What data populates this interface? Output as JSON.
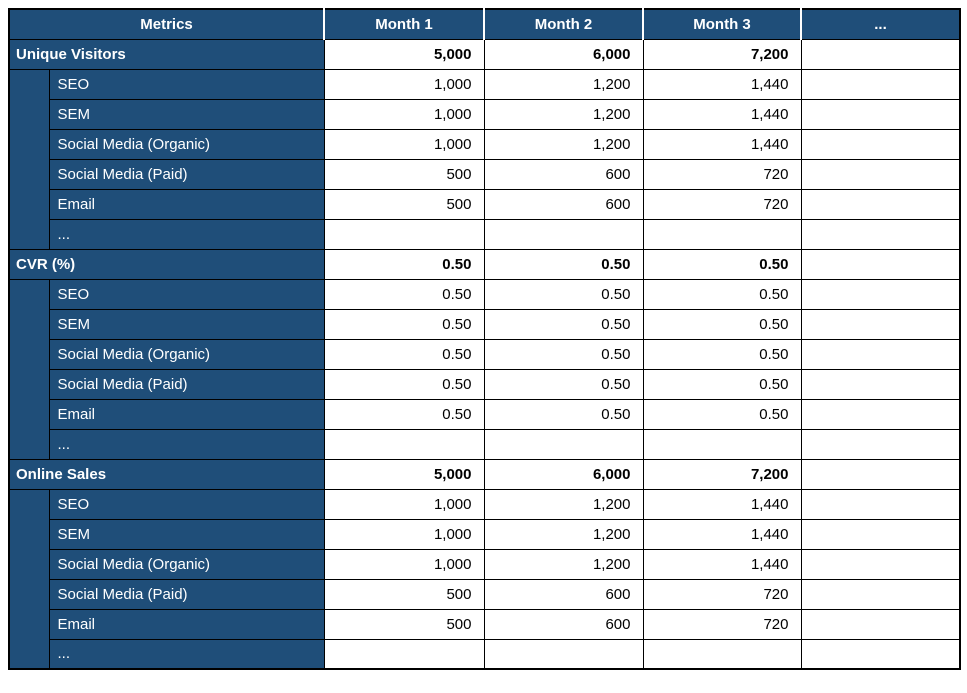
{
  "table": {
    "header": {
      "metrics_label": "Metrics",
      "columns": [
        "Month 1",
        "Month 2",
        "Month 3",
        "..."
      ]
    },
    "sections": [
      {
        "label": "Unique Visitors",
        "values": [
          "5,000",
          "6,000",
          "7,200"
        ],
        "rows": [
          {
            "label": "SEO",
            "values": [
              "1,000",
              "1,200",
              "1,440"
            ]
          },
          {
            "label": "SEM",
            "values": [
              "1,000",
              "1,200",
              "1,440"
            ]
          },
          {
            "label": "Social Media (Organic)",
            "values": [
              "1,000",
              "1,200",
              "1,440"
            ]
          },
          {
            "label": "Social Media (Paid)",
            "values": [
              "500",
              "600",
              "720"
            ]
          },
          {
            "label": "Email",
            "values": [
              "500",
              "600",
              "720"
            ]
          },
          {
            "label": "...",
            "values": [
              "",
              "",
              ""
            ]
          }
        ]
      },
      {
        "label": "CVR (%)",
        "values": [
          "0.50",
          "0.50",
          "0.50"
        ],
        "rows": [
          {
            "label": "SEO",
            "values": [
              "0.50",
              "0.50",
              "0.50"
            ]
          },
          {
            "label": "SEM",
            "values": [
              "0.50",
              "0.50",
              "0.50"
            ]
          },
          {
            "label": "Social Media (Organic)",
            "values": [
              "0.50",
              "0.50",
              "0.50"
            ]
          },
          {
            "label": "Social Media (Paid)",
            "values": [
              "0.50",
              "0.50",
              "0.50"
            ]
          },
          {
            "label": "Email",
            "values": [
              "0.50",
              "0.50",
              "0.50"
            ]
          },
          {
            "label": "...",
            "values": [
              "",
              "",
              ""
            ]
          }
        ]
      },
      {
        "label": "Online Sales",
        "values": [
          "5,000",
          "6,000",
          "7,200"
        ],
        "rows": [
          {
            "label": "SEO",
            "values": [
              "1,000",
              "1,200",
              "1,440"
            ]
          },
          {
            "label": "SEM",
            "values": [
              "1,000",
              "1,200",
              "1,440"
            ]
          },
          {
            "label": "Social Media (Organic)",
            "values": [
              "1,000",
              "1,200",
              "1,440"
            ]
          },
          {
            "label": "Social Media (Paid)",
            "values": [
              "500",
              "600",
              "720"
            ]
          },
          {
            "label": "Email",
            "values": [
              "500",
              "600",
              "720"
            ]
          },
          {
            "label": "...",
            "values": [
              "",
              "",
              ""
            ]
          }
        ]
      }
    ],
    "colors": {
      "header_bg": "#1F4E79",
      "border": "#000000",
      "label_text": "#FFFFFF",
      "value_text": "#000000"
    }
  }
}
